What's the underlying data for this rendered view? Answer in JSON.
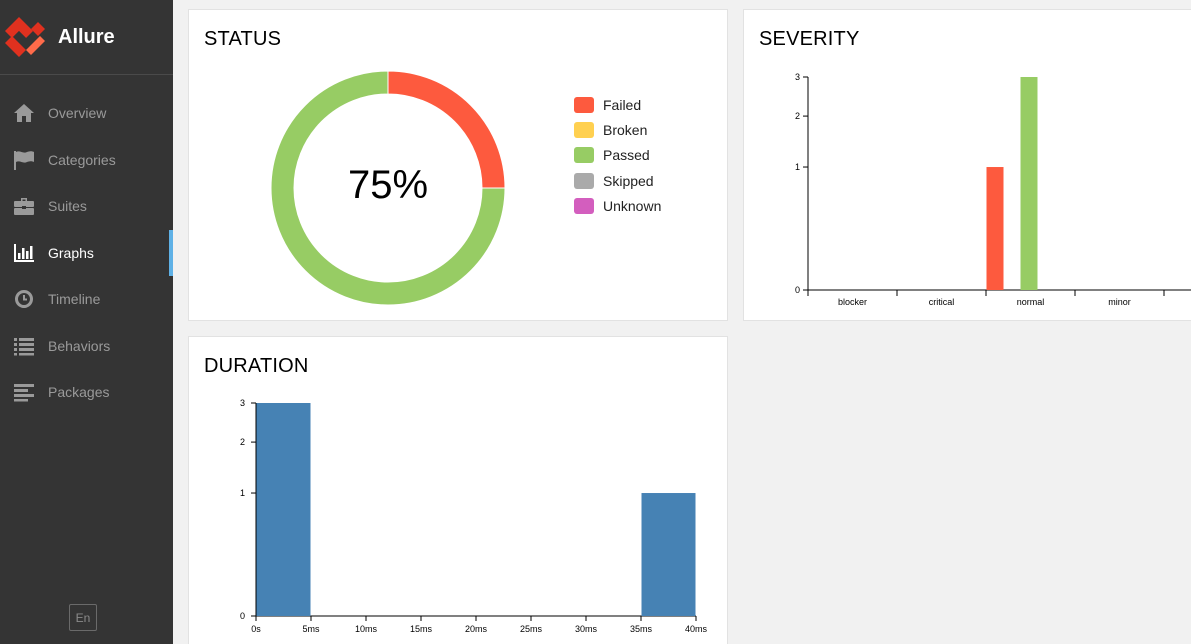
{
  "app": {
    "title": "Allure",
    "language": "En"
  },
  "sidebar": {
    "items": [
      {
        "label": "Overview",
        "icon": "home-icon",
        "active": false
      },
      {
        "label": "Categories",
        "icon": "flag-icon",
        "active": false
      },
      {
        "label": "Suites",
        "icon": "briefcase-icon",
        "active": false
      },
      {
        "label": "Graphs",
        "icon": "bar-chart-icon",
        "active": true
      },
      {
        "label": "Timeline",
        "icon": "clock-icon",
        "active": false
      },
      {
        "label": "Behaviors",
        "icon": "list-icon",
        "active": false
      },
      {
        "label": "Packages",
        "icon": "align-left-icon",
        "active": false
      }
    ]
  },
  "colors": {
    "failed": "#fd5a3e",
    "broken": "#ffd050",
    "passed": "#97cc64",
    "skipped": "#aaaaaa",
    "unknown": "#d35ebe",
    "duration": "#4682b4",
    "accent": "#5fb1e6"
  },
  "status": {
    "title": "STATUS",
    "center_label": "75%",
    "legend": [
      "Failed",
      "Broken",
      "Passed",
      "Skipped",
      "Unknown"
    ]
  },
  "severity": {
    "title": "SEVERITY"
  },
  "duration": {
    "title": "DURATION"
  },
  "chart_data": [
    {
      "type": "pie",
      "title": "STATUS",
      "categories": [
        "Failed",
        "Broken",
        "Passed",
        "Skipped",
        "Unknown"
      ],
      "values": [
        1,
        0,
        3,
        0,
        0
      ],
      "center_label": "75%"
    },
    {
      "type": "bar",
      "title": "SEVERITY",
      "categories": [
        "blocker",
        "critical",
        "normal",
        "minor"
      ],
      "series": [
        {
          "name": "Failed",
          "values": [
            0,
            0,
            1,
            0
          ]
        },
        {
          "name": "Passed",
          "values": [
            0,
            0,
            3,
            0
          ]
        }
      ],
      "yticks": [
        "0",
        "1",
        "2",
        "3"
      ],
      "ylim": [
        0,
        3
      ],
      "yscale": "sqrt"
    },
    {
      "type": "bar",
      "title": "DURATION",
      "categories": [
        "0s",
        "5ms",
        "10ms",
        "15ms",
        "20ms",
        "25ms",
        "30ms",
        "35ms",
        "40ms"
      ],
      "bins": [
        {
          "from": 0,
          "to": 5,
          "value": 3
        },
        {
          "from": 35,
          "to": 40,
          "value": 1
        }
      ],
      "xlim": [
        0,
        40
      ],
      "yticks": [
        "0",
        "1",
        "2",
        "3"
      ],
      "ylim": [
        0,
        3
      ],
      "yscale": "sqrt"
    }
  ]
}
